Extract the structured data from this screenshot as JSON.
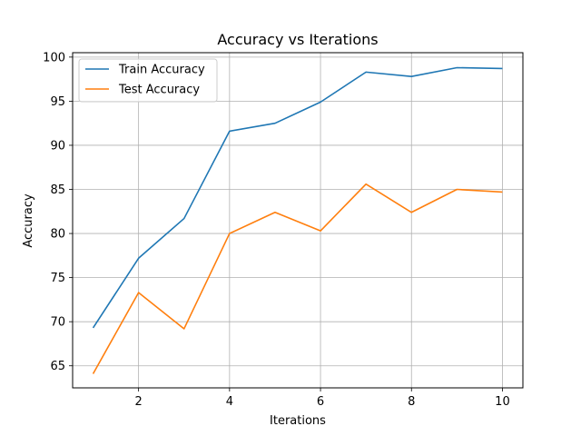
{
  "chart_data": {
    "type": "line",
    "title": "Accuracy vs Iterations",
    "xlabel": "Iterations",
    "ylabel": "Accuracy",
    "x": [
      1,
      2,
      3,
      4,
      5,
      6,
      7,
      8,
      9,
      10
    ],
    "xticks": [
      2,
      4,
      6,
      8,
      10
    ],
    "yticks": [
      65,
      70,
      75,
      80,
      85,
      90,
      95,
      100
    ],
    "xlim": [
      0.55,
      10.45
    ],
    "ylim": [
      62.5,
      100.5
    ],
    "grid": true,
    "legend_position": "top-left",
    "series": [
      {
        "name": "Train Accuracy",
        "color": "#1f77b4",
        "values": [
          69.3,
          77.2,
          81.7,
          91.6,
          92.5,
          94.9,
          98.3,
          97.8,
          98.8,
          98.7
        ]
      },
      {
        "name": "Test Accuracy",
        "color": "#ff7f0e",
        "values": [
          64.1,
          73.3,
          69.2,
          80.0,
          82.4,
          80.3,
          85.6,
          82.4,
          85.0,
          84.7
        ]
      }
    ]
  }
}
